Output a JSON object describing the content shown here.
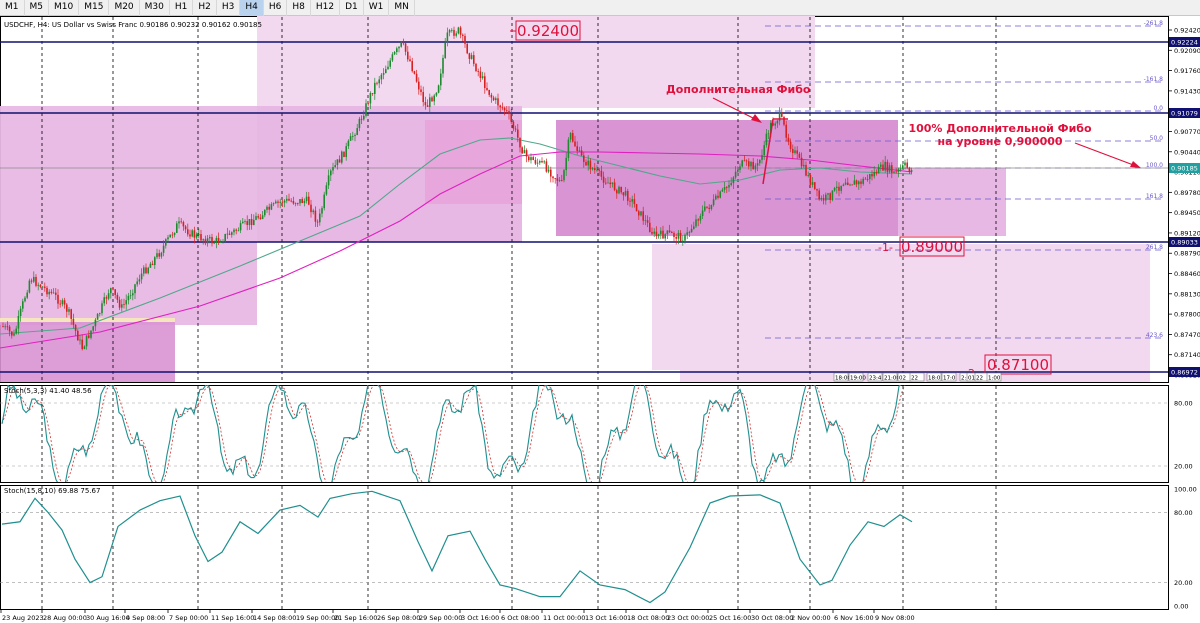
{
  "timeframes": [
    {
      "label": "M1",
      "active": false
    },
    {
      "label": "M5",
      "active": false
    },
    {
      "label": "M10",
      "active": false
    },
    {
      "label": "M15",
      "active": false
    },
    {
      "label": "M20",
      "active": false
    },
    {
      "label": "M30",
      "active": false
    },
    {
      "label": "H1",
      "active": false
    },
    {
      "label": "H2",
      "active": false
    },
    {
      "label": "H3",
      "active": false
    },
    {
      "label": "H4",
      "active": true
    },
    {
      "label": "H6",
      "active": false
    },
    {
      "label": "H8",
      "active": false
    },
    {
      "label": "H12",
      "active": false
    },
    {
      "label": "D1",
      "active": false
    },
    {
      "label": "W1",
      "active": false
    },
    {
      "label": "MN",
      "active": false
    }
  ],
  "main": {
    "symbol_info": "USDCHF, H4:  US Dollar vs Swiss Franc  0.90186 0.90232 0.90162 0.90185",
    "price_axis": [
      "0.92420",
      "0.92090",
      "0.91760",
      "0.91430",
      "0.91100",
      "0.90770",
      "0.90440",
      "0.90110",
      "0.89780",
      "0.89450",
      "0.89120",
      "0.88790",
      "0.88460",
      "0.88130",
      "0.87800",
      "0.87470",
      "0.87140",
      "0.86810"
    ],
    "hlines": [
      {
        "label": "0.92224",
        "price": 0.92224
      },
      {
        "label": "0.91079",
        "price": 0.91079
      },
      {
        "label": "0.90185",
        "price": 0.90185
      },
      {
        "label": "0.89033",
        "price": 0.89033
      },
      {
        "label": "0.86972",
        "price": 0.86972
      }
    ],
    "fib_labels": [
      "-261.8",
      "-161.8",
      "0.0",
      "50.0",
      "100.0",
      "161.8",
      "261.8",
      "423.6"
    ],
    "boxed_levels": [
      {
        "text": "0.92400",
        "prefix": ""
      },
      {
        "text": "0.89000",
        "prefix": "-1-"
      },
      {
        "text": "0.87100",
        "prefix": "-2-"
      }
    ],
    "annotations": {
      "extra_fibo": "Дополнительная Фибо",
      "fibo_line1": "100% Дополнительной Фибо",
      "fibo_line2": "на уровне 0,900000"
    },
    "session_labels": [
      "18:00",
      "19:00",
      "23:4",
      "21:00",
      "02",
      "22",
      "18:0",
      "17:0",
      "2:",
      "01",
      "22",
      "1:00"
    ]
  },
  "stoch1": {
    "title": "Stoch(5,3,3) 41.40 48.56",
    "levels": [
      "80.00",
      "20.00"
    ]
  },
  "stoch2": {
    "title": "Stoch(15,8,10) 69.88 75.67",
    "levels": [
      "100.00",
      "80.00",
      "20.00",
      "0.00"
    ]
  },
  "date_axis": [
    "23 Aug 2023",
    "28 Aug 00:00",
    "30 Aug 16:00",
    "4 Sep 08:00",
    "7 Sep 00:00",
    "11 Sep 16:00",
    "14 Sep 08:00",
    "19 Sep 00:00",
    "21 Sep 16:00",
    "26 Sep 08:00",
    "29 Sep 00:00",
    "3 Oct 16:00",
    "6 Oct 08:00",
    "11 Oct 00:00",
    "13 Oct 16:00",
    "18 Oct 08:00",
    "23 Oct 00:00",
    "25 Oct 16:00",
    "30 Oct 08:00",
    "2 Nov 00:00",
    "6 Nov 16:00",
    "9 Nov 08:00"
  ],
  "colors": {
    "bull": "#1d8a2f",
    "bear": "#d92020",
    "ma_fast": "#4fa88a",
    "ma_slow": "#e020c0",
    "stoch_main": "#1f8f8f",
    "stoch_signal": "#d03030",
    "annotation": "#e0103c",
    "zone_light": "#f3d9f0",
    "zone_mid": "#e8b8e4",
    "zone_dark": "#d994d4",
    "hline": "#101070"
  }
}
